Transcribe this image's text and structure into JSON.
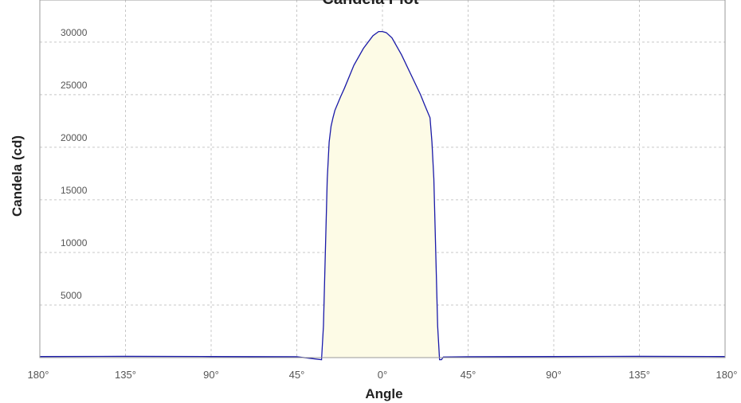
{
  "chart_data": {
    "type": "area",
    "title": "Candela Plot",
    "xlabel": "Angle",
    "ylabel": "Candela (cd)",
    "xlim": [
      -180,
      180
    ],
    "ylim": [
      0,
      34000
    ],
    "grid": true,
    "x_ticks": [
      -180,
      -135,
      -90,
      -45,
      0,
      45,
      90,
      135,
      180
    ],
    "x_tick_labels": [
      "180°",
      "135°",
      "90°",
      "45°",
      "0°",
      "45°",
      "90°",
      "135°",
      "180°"
    ],
    "y_ticks": [
      5000,
      10000,
      15000,
      20000,
      25000,
      30000
    ],
    "y_tick_labels": [
      "5000",
      "10000",
      "15000",
      "20000",
      "25000",
      "30000"
    ],
    "colors": {
      "line": "#1a1aa8",
      "fill": "#fdfbe6",
      "grid": "#c8c8c8",
      "frame": "#999999"
    },
    "series": [
      {
        "x": [
          -180,
          -135,
          -90,
          -45,
          -32,
          -31,
          -30,
          -29,
          -28,
          -27,
          -26,
          -25,
          -22,
          -20,
          -15,
          -10,
          -5,
          -2,
          0,
          2,
          5,
          10,
          15,
          20,
          22,
          25,
          26,
          27,
          28,
          29,
          30,
          31,
          32,
          45,
          90,
          135,
          180
        ],
        "values": [
          100,
          120,
          100,
          80,
          -200,
          3000,
          10000,
          17000,
          20500,
          22000,
          22800,
          23500,
          24800,
          25600,
          27800,
          29400,
          30600,
          31000,
          31000,
          30900,
          30400,
          28800,
          26900,
          25000,
          24100,
          22800,
          20500,
          17000,
          10000,
          3000,
          -200,
          -200,
          60,
          80,
          100,
          120,
          100
        ]
      }
    ]
  }
}
